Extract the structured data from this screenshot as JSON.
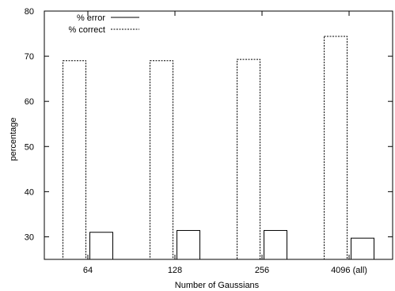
{
  "chart_data": {
    "type": "bar",
    "xlabel": "Number of Gaussians",
    "ylabel": "percentage",
    "ylim": [
      25,
      80
    ],
    "y_ticks": [
      30,
      40,
      50,
      60,
      70,
      80
    ],
    "categories": [
      "64",
      "128",
      "256",
      "4096 (all)"
    ],
    "grid": false,
    "legend_position": "top-left",
    "series": [
      {
        "name": "% error",
        "values": [
          31.0,
          31.4,
          31.4,
          29.7
        ],
        "line_style": "solid",
        "color": "#000000"
      },
      {
        "name": "% correct",
        "values": [
          69.0,
          69.0,
          69.3,
          74.4
        ],
        "line_style": "dashed",
        "color": "#000000"
      }
    ]
  }
}
